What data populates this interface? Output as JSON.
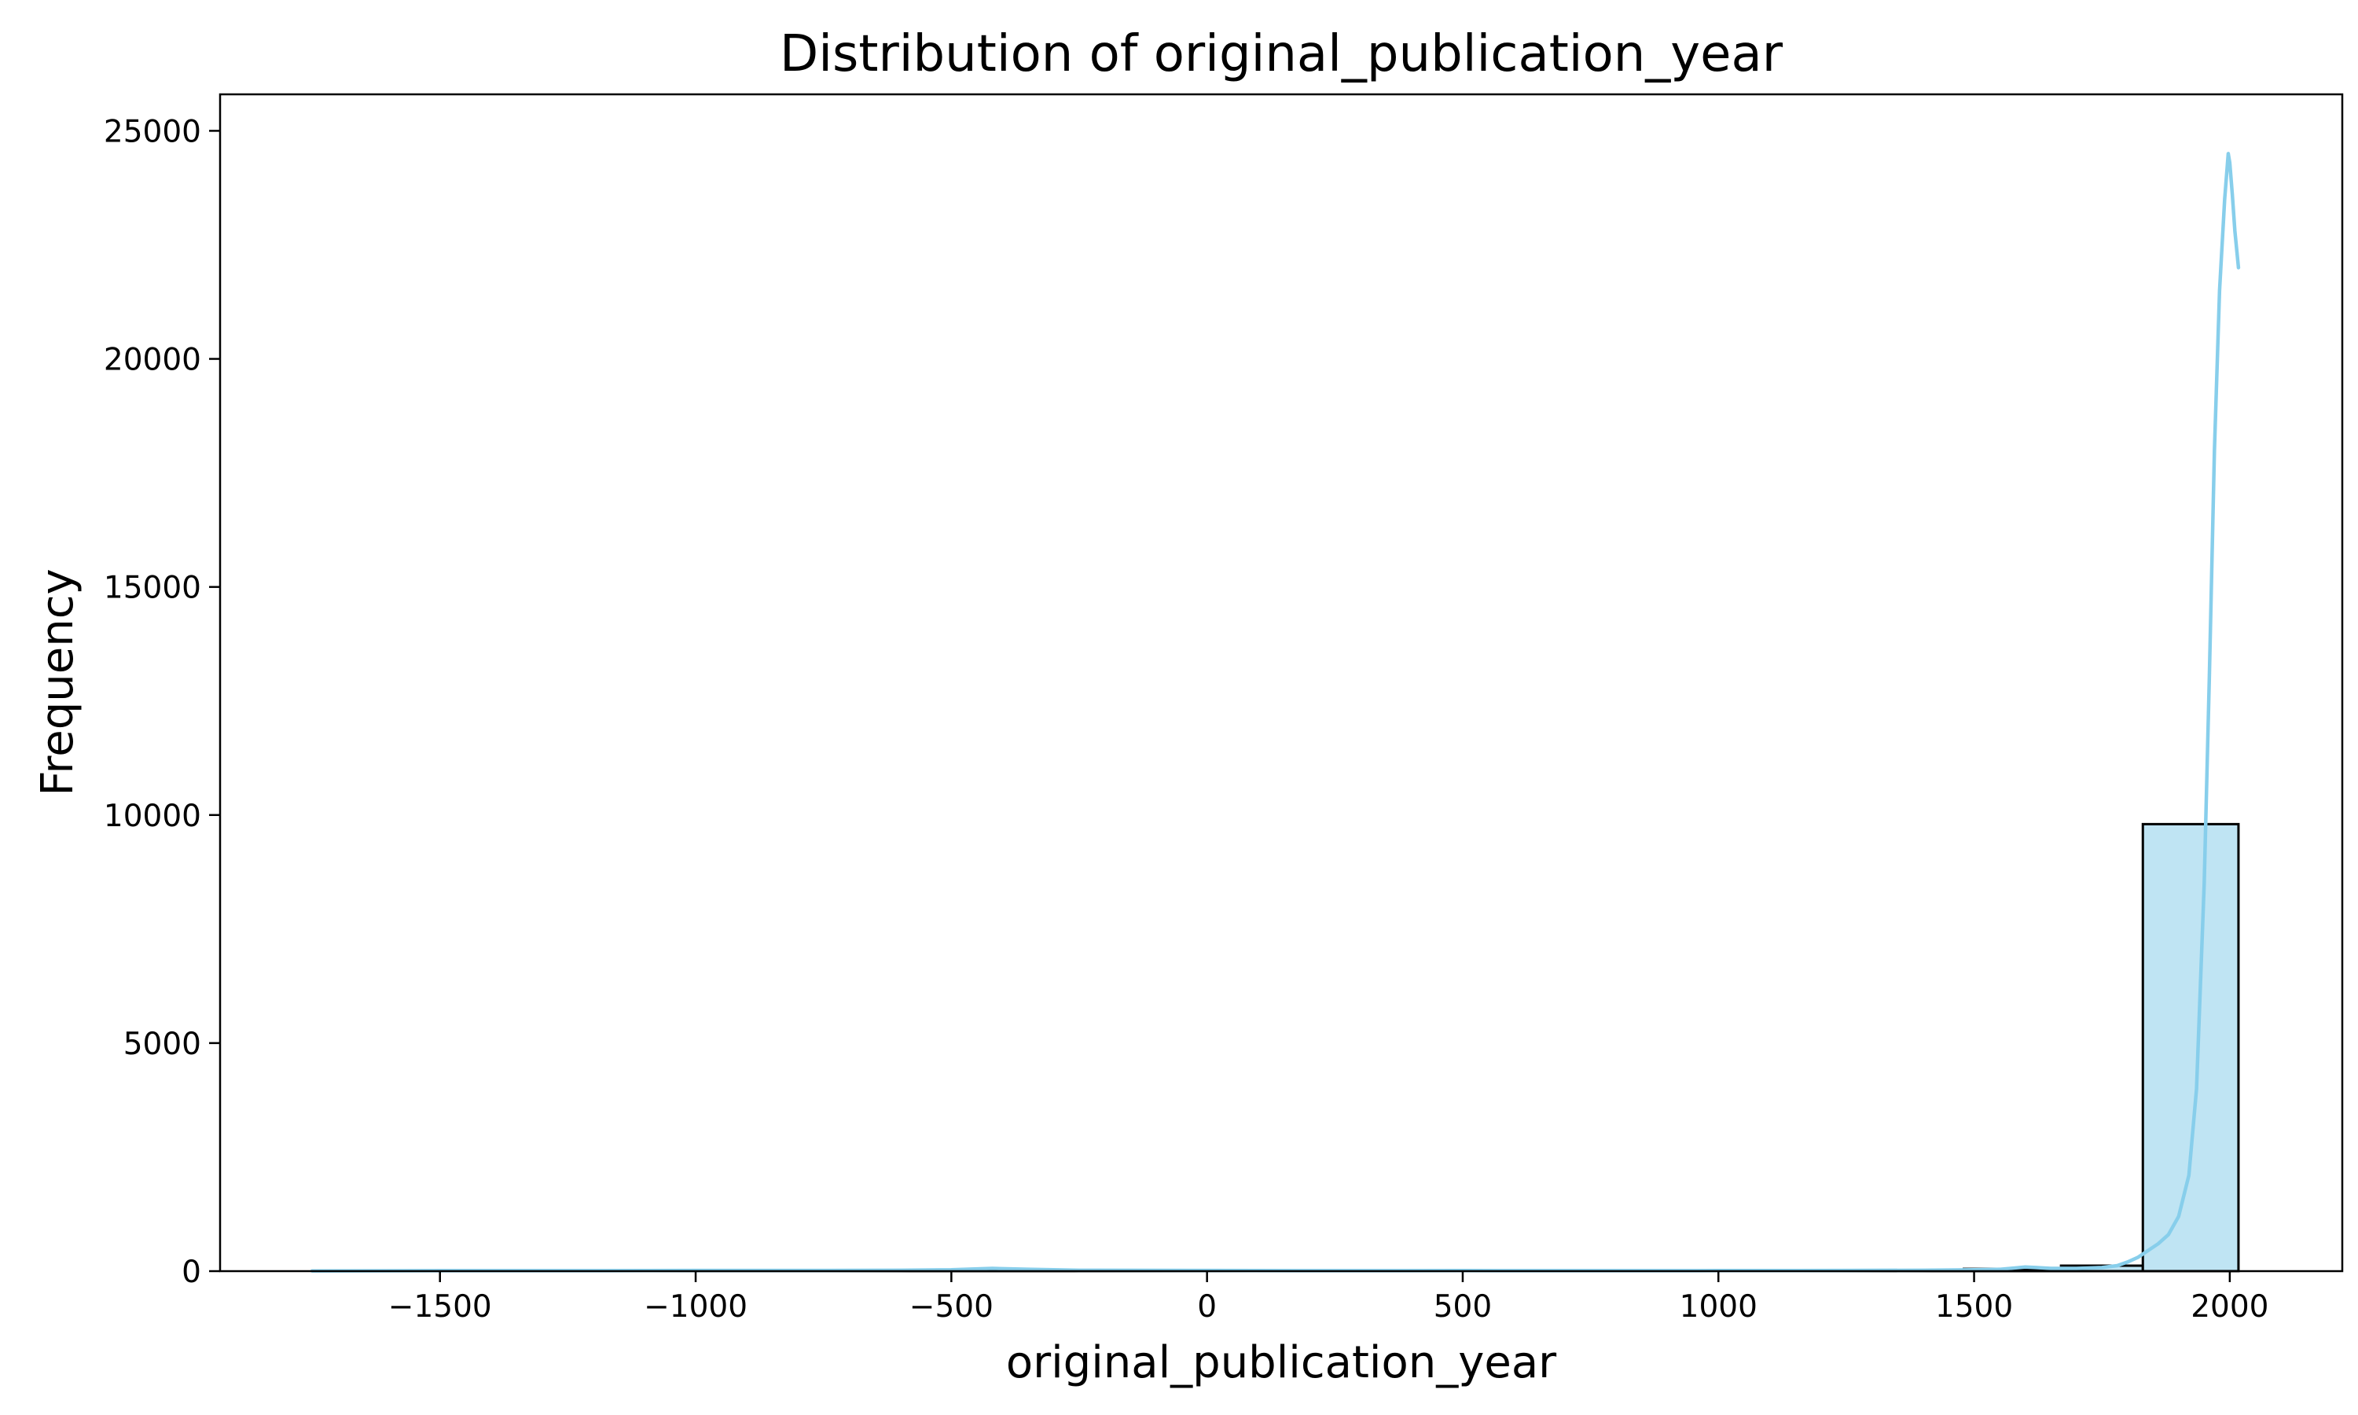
{
  "chart_data": {
    "type": "bar",
    "title": "Distribution of original_publication_year",
    "xlabel": "original_publication_year",
    "ylabel": "Frequency",
    "xlim": [
      -1930,
      2220
    ],
    "ylim": [
      0,
      25800
    ],
    "x_ticks": [
      -1500,
      -1000,
      -500,
      0,
      500,
      1000,
      1500,
      2000
    ],
    "x_tick_labels": [
      "−1500",
      "−1000",
      "−500",
      "0",
      "500",
      "1000",
      "1500",
      "2000"
    ],
    "y_ticks": [
      0,
      5000,
      10000,
      15000,
      20000,
      25000
    ],
    "y_tick_labels": [
      "0",
      "5000",
      "10000",
      "15000",
      "20000",
      "25000"
    ],
    "bars": [
      {
        "x0": -1750,
        "x1": -1560,
        "value": 5
      },
      {
        "x0": -1560,
        "x1": -1370,
        "value": 2
      },
      {
        "x0": -1370,
        "x1": -1180,
        "value": 1
      },
      {
        "x0": -1180,
        "x1": -990,
        "value": 2
      },
      {
        "x0": -990,
        "x1": -800,
        "value": 4
      },
      {
        "x0": -800,
        "x1": -610,
        "value": 6
      },
      {
        "x0": -610,
        "x1": -420,
        "value": 10
      },
      {
        "x0": -420,
        "x1": -230,
        "value": 12
      },
      {
        "x0": -230,
        "x1": -40,
        "value": 5
      },
      {
        "x0": -40,
        "x1": 150,
        "value": 6
      },
      {
        "x0": 150,
        "x1": 340,
        "value": 5
      },
      {
        "x0": 340,
        "x1": 530,
        "value": 4
      },
      {
        "x0": 530,
        "x1": 720,
        "value": 4
      },
      {
        "x0": 720,
        "x1": 910,
        "value": 4
      },
      {
        "x0": 910,
        "x1": 1100,
        "value": 5
      },
      {
        "x0": 1100,
        "x1": 1290,
        "value": 6
      },
      {
        "x0": 1290,
        "x1": 1480,
        "value": 18
      },
      {
        "x0": 1480,
        "x1": 1670,
        "value": 50
      },
      {
        "x0": 1670,
        "x1": 1830,
        "value": 120
      },
      {
        "x0": 1830,
        "x1": 2017,
        "value": 9800
      }
    ],
    "kde": {
      "x": [
        -1750,
        -1500,
        -1250,
        -1000,
        -750,
        -600,
        -500,
        -420,
        -350,
        -250,
        0,
        250,
        500,
        750,
        1000,
        1250,
        1400,
        1500,
        1550,
        1580,
        1600,
        1620,
        1650,
        1700,
        1750,
        1780,
        1800,
        1820,
        1840,
        1860,
        1880,
        1900,
        1920,
        1935,
        1950,
        1960,
        1970,
        1980,
        1990,
        1997,
        2000,
        2005,
        2010,
        2017
      ],
      "y": [
        5,
        10,
        10,
        15,
        15,
        20,
        30,
        60,
        40,
        20,
        15,
        10,
        12,
        10,
        12,
        15,
        20,
        30,
        40,
        70,
        90,
        80,
        60,
        60,
        80,
        120,
        200,
        300,
        450,
        600,
        800,
        1200,
        2100,
        4000,
        8500,
        13000,
        18000,
        21500,
        23500,
        24500,
        24300,
        23600,
        22800,
        22000
      ]
    },
    "grid": false,
    "legend": "none",
    "colors": {
      "bar_fill": "#bfe4f3",
      "bar_edge": "#000000",
      "kde_line": "#87ceeb"
    }
  }
}
